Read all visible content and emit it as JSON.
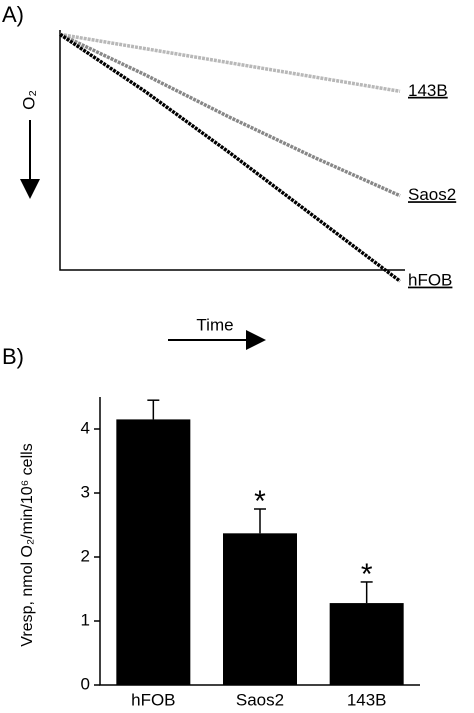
{
  "chart_data": [
    {
      "type": "line",
      "label": "A)",
      "xlabel": "Time",
      "ylabel": "O₂",
      "x": [
        0,
        25,
        50,
        75,
        100
      ],
      "xlim": [
        0,
        100
      ],
      "ylim": [
        -10,
        100
      ],
      "series": [
        {
          "name": "143B",
          "color": "#b8b8b8",
          "values": [
            99,
            93,
            87,
            81,
            75
          ]
        },
        {
          "name": "Saos2",
          "color": "#888888",
          "values": [
            99,
            82,
            64,
            47,
            31
          ]
        },
        {
          "name": "hFOB",
          "color": "#000000",
          "values": [
            99,
            75,
            49,
            22,
            -5
          ]
        }
      ]
    },
    {
      "type": "bar",
      "label": "B)",
      "ylabel": "Vresp, nmol O₂/min/10⁶ cells",
      "categories": [
        "hFOB",
        "Saos2",
        "143B"
      ],
      "values": [
        4.15,
        2.37,
        1.28
      ],
      "errors": [
        0.3,
        0.38,
        0.33
      ],
      "color": "#000000",
      "ylim": [
        0,
        4.5
      ],
      "yticks": [
        0,
        1,
        2,
        3,
        4
      ],
      "annotations": [
        {
          "category": "Saos2",
          "text": "*"
        },
        {
          "category": "143B",
          "text": "*"
        }
      ]
    }
  ]
}
